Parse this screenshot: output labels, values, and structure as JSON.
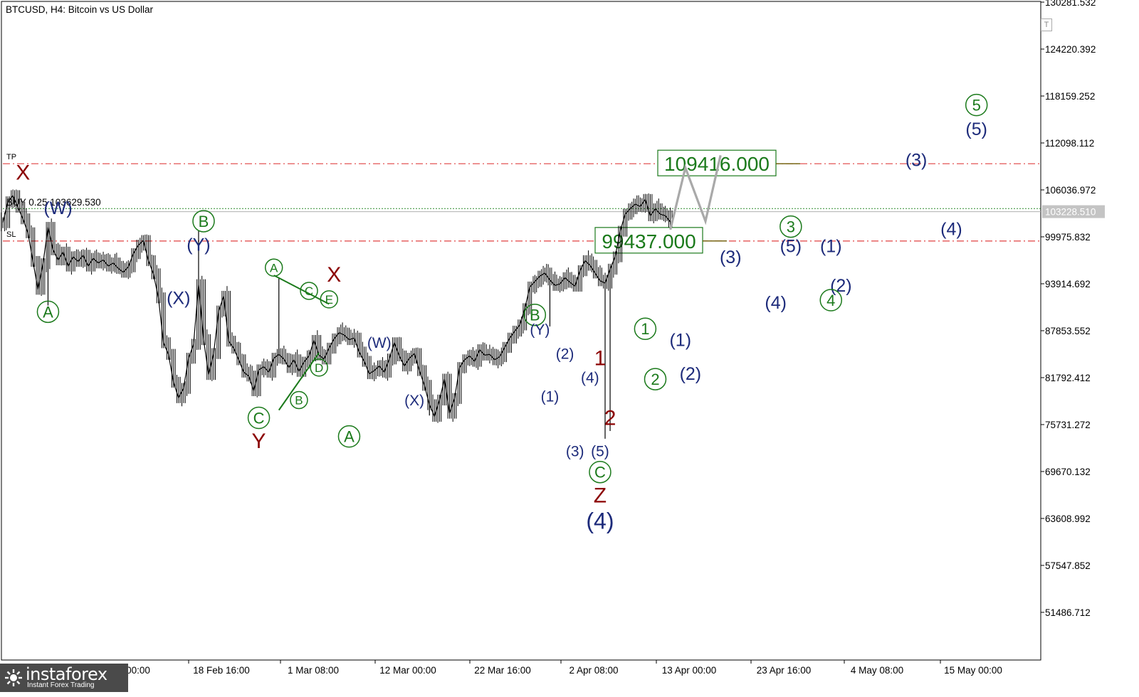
{
  "chart_data": {
    "type": "line",
    "title": "BTCUSD, H4:  Bitcoin vs US Dollar",
    "xlabel": "",
    "ylabel": "",
    "ylim": [
      45000,
      131000
    ],
    "grid": false,
    "y_ticks": [
      "130281.532",
      "124220.392",
      "118159.252",
      "112098.112",
      "106036.972",
      "99975.832",
      "93914.692",
      "87853.552",
      "81792.412",
      "75731.272",
      "69670.132",
      "63608.992",
      "57547.852",
      "51486.712"
    ],
    "x_ticks": [
      "18 Feb 16:00",
      "1 Mar 08:00",
      "12 Mar 00:00",
      "22 Mar 16:00",
      "2 Apr 08:00",
      "13 Apr 00:00",
      "23 Apr 16:00",
      "4 May 08:00",
      "15 May 00:00"
    ],
    "x_ticks_partial": [
      "00:00"
    ],
    "price_series": {
      "name": "BTCUSD H4 close",
      "points": [
        [
          0,
          101800
        ],
        [
          1,
          104500
        ],
        [
          2,
          105300
        ],
        [
          3,
          103800
        ],
        [
          4,
          102300
        ],
        [
          5,
          100500
        ],
        [
          6,
          96800
        ],
        [
          7,
          93200
        ],
        [
          8,
          96500
        ],
        [
          9,
          101200
        ],
        [
          10,
          98300
        ],
        [
          11,
          97000
        ],
        [
          12,
          98000
        ],
        [
          13,
          96200
        ],
        [
          14,
          97400
        ],
        [
          15,
          96800
        ],
        [
          16,
          97600
        ],
        [
          17,
          96200
        ],
        [
          18,
          97200
        ],
        [
          19,
          96600
        ],
        [
          20,
          97000
        ],
        [
          21,
          96200
        ],
        [
          22,
          96600
        ],
        [
          23,
          95900
        ],
        [
          24,
          95400
        ],
        [
          25,
          96100
        ],
        [
          26,
          97800
        ],
        [
          27,
          98900
        ],
        [
          28,
          99500
        ],
        [
          29,
          96900
        ],
        [
          30,
          95200
        ],
        [
          31,
          92100
        ],
        [
          32,
          86300
        ],
        [
          33,
          84800
        ],
        [
          34,
          81200
        ],
        [
          35,
          79200
        ],
        [
          36,
          80400
        ],
        [
          37,
          84300
        ],
        [
          38,
          86100
        ],
        [
          39,
          93800
        ],
        [
          40,
          86700
        ],
        [
          41,
          82200
        ],
        [
          42,
          84900
        ],
        [
          43,
          90400
        ],
        [
          44,
          92300
        ],
        [
          45,
          86500
        ],
        [
          46,
          85600
        ],
        [
          47,
          84100
        ],
        [
          48,
          82500
        ],
        [
          49,
          82000
        ],
        [
          50,
          80100
        ],
        [
          51,
          82800
        ],
        [
          52,
          83200
        ],
        [
          53,
          82500
        ],
        [
          54,
          84300
        ],
        [
          55,
          84800
        ],
        [
          56,
          84200
        ],
        [
          57,
          83100
        ],
        [
          58,
          84100
        ],
        [
          59,
          82600
        ],
        [
          60,
          83800
        ],
        [
          61,
          84600
        ],
        [
          62,
          86600
        ],
        [
          63,
          84700
        ],
        [
          64,
          84200
        ],
        [
          65,
          85600
        ],
        [
          66,
          86800
        ],
        [
          67,
          87600
        ],
        [
          68,
          87300
        ],
        [
          69,
          86700
        ],
        [
          70,
          86900
        ],
        [
          71,
          85100
        ],
        [
          72,
          83900
        ],
        [
          73,
          82300
        ],
        [
          74,
          82700
        ],
        [
          75,
          83300
        ],
        [
          76,
          82500
        ],
        [
          77,
          84200
        ],
        [
          78,
          86300
        ],
        [
          79,
          84600
        ],
        [
          80,
          83300
        ],
        [
          81,
          84300
        ],
        [
          82,
          84900
        ],
        [
          83,
          82700
        ],
        [
          84,
          80800
        ],
        [
          85,
          78300
        ],
        [
          86,
          76800
        ],
        [
          87,
          78900
        ],
        [
          88,
          81600
        ],
        [
          89,
          77200
        ],
        [
          90,
          79100
        ],
        [
          91,
          83100
        ],
        [
          92,
          84100
        ],
        [
          93,
          84600
        ],
        [
          94,
          83900
        ],
        [
          95,
          85400
        ],
        [
          96,
          84700
        ],
        [
          97,
          84800
        ],
        [
          98,
          84100
        ],
        [
          99,
          84500
        ],
        [
          100,
          85700
        ],
        [
          101,
          86900
        ],
        [
          102,
          87800
        ],
        [
          103,
          88600
        ],
        [
          104,
          90700
        ],
        [
          105,
          93500
        ],
        [
          106,
          94200
        ],
        [
          107,
          94900
        ],
        [
          108,
          95300
        ],
        [
          109,
          94400
        ],
        [
          110,
          93700
        ],
        [
          111,
          93900
        ],
        [
          112,
          94700
        ],
        [
          113,
          94100
        ],
        [
          114,
          93600
        ],
        [
          115,
          95600
        ],
        [
          116,
          96900
        ],
        [
          117,
          96300
        ],
        [
          118,
          95300
        ],
        [
          119,
          94300
        ],
        [
          120,
          94000
        ],
        [
          121,
          95800
        ],
        [
          122,
          97400
        ],
        [
          123,
          100700
        ],
        [
          124,
          102900
        ],
        [
          125,
          103600
        ],
        [
          126,
          104200
        ],
        [
          127,
          103900
        ],
        [
          128,
          104800
        ],
        [
          129,
          102700
        ],
        [
          130,
          103600
        ],
        [
          131,
          102900
        ],
        [
          132,
          102700
        ],
        [
          133,
          101900
        ]
      ]
    },
    "forecast_path": [
      [
        133,
        100900
      ],
      [
        136,
        108900
      ],
      [
        140,
        102000
      ],
      [
        143,
        110500
      ]
    ],
    "levels": [
      {
        "label": "109416.000",
        "value": 109416.0,
        "kind": "TP"
      },
      {
        "label": "99437.000",
        "value": 99437.0,
        "kind": "SL"
      }
    ],
    "buy_level": {
      "label": "BUY 0.25 103629.530",
      "value": 103629.53
    },
    "current_price": {
      "label": "103228.510",
      "value": 103228.51
    },
    "line_labels": [
      "TP",
      "SL"
    ],
    "annotations": [
      {
        "text": "X",
        "x": 4,
        "y": 108300,
        "style": "dark-red"
      },
      {
        "text": "(W)",
        "x": 11,
        "y": 103700,
        "style": "navy"
      },
      {
        "text": "A",
        "x": 9,
        "y": 90300,
        "style": "green-circle"
      },
      {
        "text": "B",
        "x": 40,
        "y": 102000,
        "style": "green-circle"
      },
      {
        "text": "(Y)",
        "x": 39,
        "y": 99000,
        "style": "navy"
      },
      {
        "text": "(X)",
        "x": 35,
        "y": 92100,
        "style": "navy"
      },
      {
        "text": "A",
        "x": 54,
        "y": 96000,
        "style": "green-circle-sm"
      },
      {
        "text": "C",
        "x": 61,
        "y": 93000,
        "style": "green-circle-sm"
      },
      {
        "text": "E",
        "x": 65,
        "y": 91900,
        "style": "green-circle-sm"
      },
      {
        "text": "X",
        "x": 66,
        "y": 95100,
        "style": "dark-red"
      },
      {
        "text": "D",
        "x": 63,
        "y": 83100,
        "style": "green-circle-sm"
      },
      {
        "text": "B",
        "x": 59,
        "y": 78900,
        "style": "green-circle-sm"
      },
      {
        "text": "C",
        "x": 51,
        "y": 76600,
        "style": "green-circle"
      },
      {
        "text": "Y",
        "x": 51,
        "y": 73600,
        "style": "dark-red"
      },
      {
        "text": "A",
        "x": 69,
        "y": 74200,
        "style": "green-circle"
      },
      {
        "text": "(W)",
        "x": 75,
        "y": 86300,
        "style": "navy-sm"
      },
      {
        "text": "(X)",
        "x": 82,
        "y": 78900,
        "style": "navy-sm"
      },
      {
        "text": "B",
        "x": 106,
        "y": 89900,
        "style": "green-circle"
      },
      {
        "text": "(Y)",
        "x": 107,
        "y": 88000,
        "style": "navy-sm"
      },
      {
        "text": "(2)",
        "x": 112,
        "y": 84900,
        "style": "navy-sm"
      },
      {
        "text": "(1)",
        "x": 109,
        "y": 79400,
        "style": "navy-sm"
      },
      {
        "text": "(4)",
        "x": 117,
        "y": 81800,
        "style": "navy-sm"
      },
      {
        "text": "1",
        "x": 119,
        "y": 84300,
        "style": "dark-red"
      },
      {
        "text": "2",
        "x": 121,
        "y": 76600,
        "style": "dark-red"
      },
      {
        "text": "(3)",
        "x": 114,
        "y": 72300,
        "style": "navy-sm"
      },
      {
        "text": "(5)",
        "x": 119,
        "y": 72300,
        "style": "navy-sm"
      },
      {
        "text": "C",
        "x": 119,
        "y": 69600,
        "style": "green-circle"
      },
      {
        "text": "Z",
        "x": 119,
        "y": 66600,
        "style": "dark-red"
      },
      {
        "text": "(4)",
        "x": 119,
        "y": 63300,
        "style": "navy-lg"
      },
      {
        "text": "1",
        "x": 128,
        "y": 88100,
        "style": "green-circle"
      },
      {
        "text": "2",
        "x": 130,
        "y": 81600,
        "style": "green-circle"
      },
      {
        "text": "(1)",
        "x": 135,
        "y": 86700,
        "style": "navy"
      },
      {
        "text": "(2)",
        "x": 137,
        "y": 82300,
        "style": "navy"
      },
      {
        "text": "(3)",
        "x": 145,
        "y": 97400,
        "style": "navy"
      },
      {
        "text": "(4)",
        "x": 154,
        "y": 91500,
        "style": "navy"
      },
      {
        "text": "3",
        "x": 157,
        "y": 101300,
        "style": "green-circle"
      },
      {
        "text": "(5)",
        "x": 157,
        "y": 98800,
        "style": "navy"
      },
      {
        "text": "(1)",
        "x": 165,
        "y": 98800,
        "style": "navy"
      },
      {
        "text": "(2)",
        "x": 167,
        "y": 93700,
        "style": "navy"
      },
      {
        "text": "4",
        "x": 165,
        "y": 91800,
        "style": "green-circle"
      },
      {
        "text": "(3)",
        "x": 182,
        "y": 109900,
        "style": "navy"
      },
      {
        "text": "(4)",
        "x": 189,
        "y": 101000,
        "style": "navy"
      },
      {
        "text": "5",
        "x": 194,
        "y": 117000,
        "style": "green-circle"
      },
      {
        "text": "(5)",
        "x": 194,
        "y": 113900,
        "style": "navy"
      }
    ],
    "trendlines": [
      {
        "from": [
          54,
          95000
        ],
        "to": [
          65,
          91300
        ]
      },
      {
        "from": [
          55,
          77600
        ],
        "to": [
          63,
          85000
        ]
      }
    ]
  },
  "watermark": {
    "brand": "instaforex",
    "tagline": "Instant Forex Trading"
  },
  "colors": {
    "navy": "#1c2a7a",
    "dark_red": "#8b0000",
    "green": "#1b7a1b",
    "red_dash": "#e04040",
    "green_dot": "#2e8b2e",
    "forecast": "#a9a9a9",
    "price_bar": "#000000"
  },
  "icons": {
    "scroll_button": "T"
  }
}
